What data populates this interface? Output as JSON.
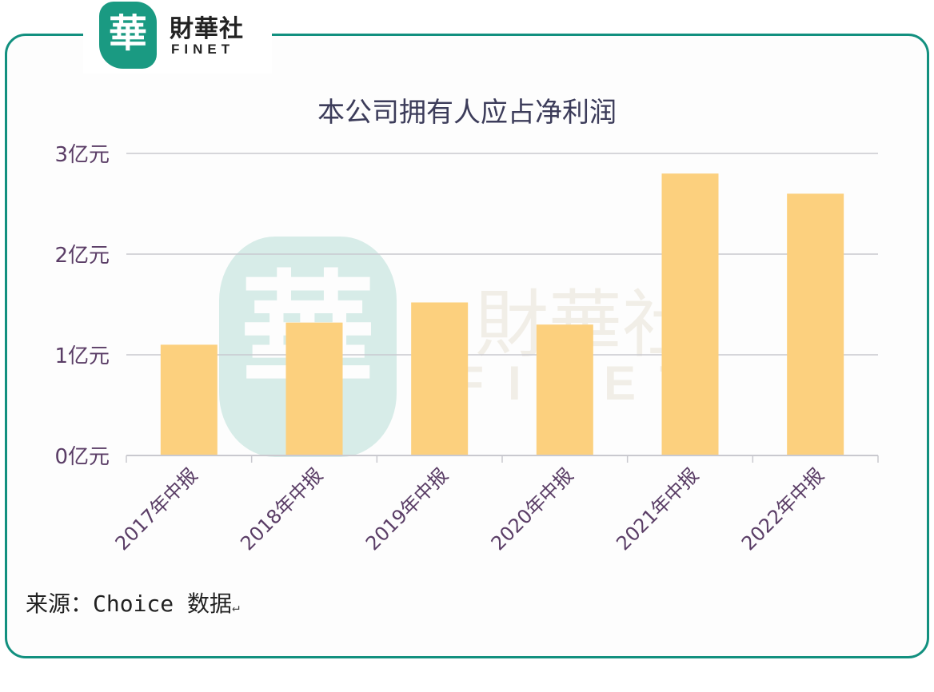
{
  "logo": {
    "mark": "華",
    "name_cn": "財華社",
    "name_en": "FINET"
  },
  "watermark": {
    "mark": "華",
    "name_cn": "財華社",
    "name_en": "FINET"
  },
  "source": {
    "text": "来源：Choice 数据",
    "mark": "↵"
  },
  "colors": {
    "bar": "#fcd07e",
    "frame": "#12907f",
    "grid": "#c9c9cf",
    "label": "#5a3d66"
  },
  "chart_data": {
    "type": "bar",
    "title": "本公司拥有人应占净利润",
    "categories": [
      "2017年中报",
      "2018年中报",
      "2019年中报",
      "2020年中报",
      "2021年中报",
      "2022年中报"
    ],
    "values": [
      1.1,
      1.32,
      1.52,
      1.3,
      2.8,
      2.6
    ],
    "yticks": [
      0,
      1,
      2,
      3
    ],
    "ytick_labels": [
      "0亿元",
      "1亿元",
      "2亿元",
      "3亿元"
    ],
    "ylim": [
      0,
      3
    ],
    "grid": true,
    "legend": "none"
  }
}
